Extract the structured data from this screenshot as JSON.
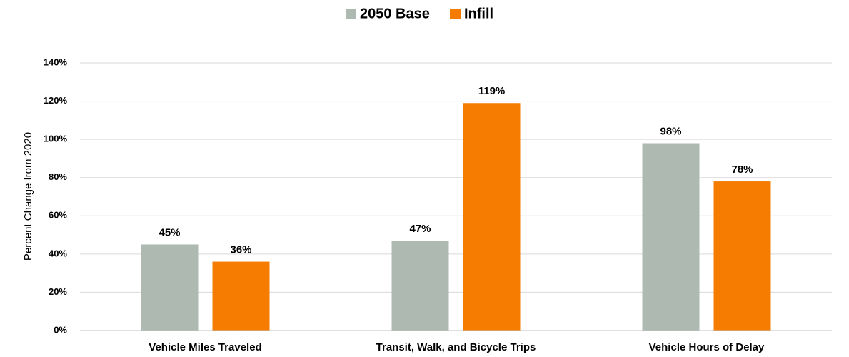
{
  "chart_data": {
    "type": "bar",
    "y_label": "Percent Change from 2020",
    "categories": [
      "Vehicle Miles Traveled",
      "Transit, Walk, and Bicycle Trips",
      "Vehicle Hours of Delay"
    ],
    "series": [
      {
        "name": "2050 Base",
        "color": "#adb9b1",
        "values": [
          45,
          47,
          98
        ],
        "value_labels": [
          "45%",
          "47%",
          "98%"
        ]
      },
      {
        "name": "Infill",
        "color": "#f57c00",
        "values": [
          36,
          119,
          78
        ],
        "value_labels": [
          "36%",
          "119%",
          "78%"
        ]
      }
    ],
    "ylim": [
      0,
      140
    ],
    "yticks": [
      {
        "value": 0,
        "label": "0%"
      },
      {
        "value": 20,
        "label": "20%"
      },
      {
        "value": 40,
        "label": "40%"
      },
      {
        "value": 60,
        "label": "60%"
      },
      {
        "value": 80,
        "label": "80%"
      },
      {
        "value": 100,
        "label": "100%"
      },
      {
        "value": 120,
        "label": "120%"
      },
      {
        "value": 140,
        "label": "140%"
      }
    ],
    "grid": true,
    "legend": "top"
  }
}
